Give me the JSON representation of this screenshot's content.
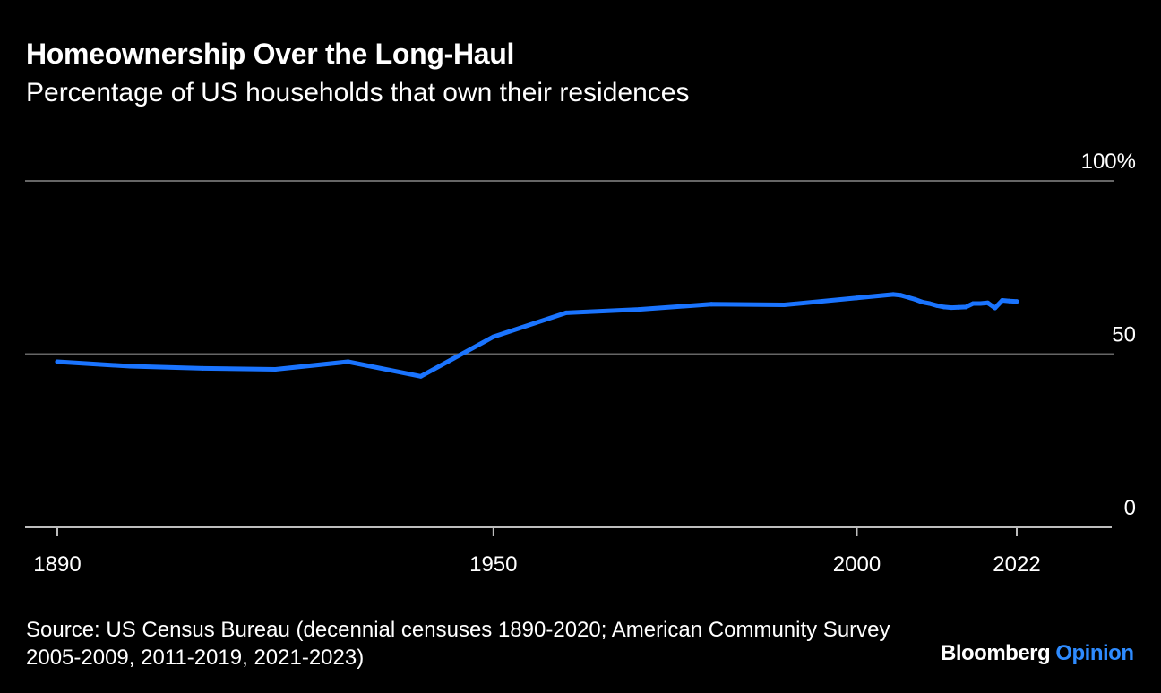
{
  "header": {
    "title": "Homeownership Over the Long-Haul",
    "subtitle": "Percentage of US households that own their residences"
  },
  "footer": {
    "source": "Source: US Census Bureau (decennial censuses 1890-2020; American Community Survey 2005-2009, 2011-2019, 2021-2023)",
    "brand_primary": "Bloomberg",
    "brand_secondary": "Opinion"
  },
  "colors": {
    "background": "#000000",
    "line": "#1a74ff",
    "grid": "#666666",
    "text": "#ffffff",
    "brand_accent": "#2e8bff"
  },
  "chart_data": {
    "type": "line",
    "title": "Homeownership Over the Long-Haul",
    "subtitle": "Percentage of US households that own their residences",
    "xlabel": "",
    "ylabel": "",
    "xlim": [
      1886,
      2035
    ],
    "ylim": [
      0,
      100
    ],
    "x_ticks": [
      1890,
      1950,
      2000,
      2022
    ],
    "x_tick_labels": [
      "1890",
      "1950",
      "2000",
      "2022"
    ],
    "y_ticks": [
      0,
      50,
      100
    ],
    "y_tick_labels": [
      "0",
      "50",
      "100%"
    ],
    "grid": true,
    "series": [
      {
        "x": [
          1890,
          1900,
          1910,
          1920,
          1930,
          1940,
          1950,
          1960,
          1970,
          1980,
          1990,
          2000,
          2005,
          2006,
          2007,
          2008,
          2009,
          2010,
          2011,
          2012,
          2013,
          2014,
          2015,
          2016,
          2017,
          2018,
          2019,
          2020,
          2021,
          2022
        ],
        "values": [
          47.8,
          46.5,
          45.9,
          45.6,
          47.8,
          43.6,
          55.0,
          61.9,
          62.9,
          64.4,
          64.2,
          66.2,
          67.2,
          67.0,
          66.4,
          65.8,
          65.0,
          64.6,
          64.0,
          63.6,
          63.4,
          63.5,
          63.6,
          64.6,
          64.6,
          64.8,
          63.3,
          65.5,
          65.3,
          65.2
        ]
      }
    ]
  }
}
